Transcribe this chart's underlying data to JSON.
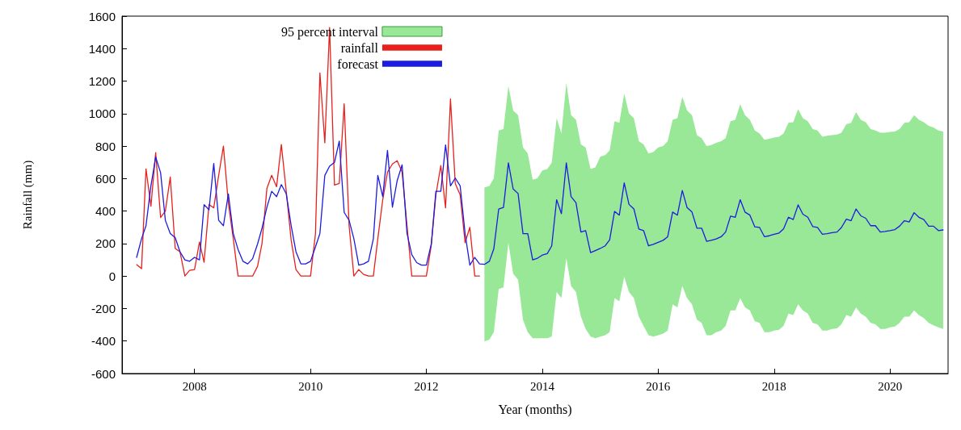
{
  "chart_data": {
    "type": "line",
    "xlabel": "Year (months)",
    "ylabel": "Rainfall (mm)",
    "xlim": [
      "2006-10",
      "2021-01"
    ],
    "xticks": [
      "2008",
      "2010",
      "2012",
      "2014",
      "2016",
      "2018",
      "2020"
    ],
    "ylim": [
      -600,
      1600
    ],
    "yticks": [
      -600,
      -400,
      -200,
      0,
      200,
      400,
      600,
      800,
      1000,
      1200,
      1400,
      1600
    ],
    "grid": false,
    "legend": "top left",
    "marker": "none",
    "line_style": "solid",
    "series": [
      {
        "name": "95 percent interval",
        "type": "area",
        "color": "#98e898",
        "x": [
          "2013-01",
          "2013-02",
          "2013-03",
          "2013-04",
          "2013-05",
          "2013-06",
          "2013-07",
          "2013-08",
          "2013-09",
          "2013-10",
          "2013-11",
          "2013-12",
          "2014-01",
          "2014-02",
          "2014-03",
          "2014-04",
          "2014-05",
          "2014-06",
          "2014-07",
          "2014-08",
          "2014-09",
          "2014-10",
          "2014-11",
          "2014-12",
          "2015-01",
          "2015-02",
          "2015-03",
          "2015-04",
          "2015-05",
          "2015-06",
          "2015-07",
          "2015-08",
          "2015-09",
          "2015-10",
          "2015-11",
          "2015-12",
          "2016-01",
          "2016-02",
          "2016-03",
          "2016-04",
          "2016-05",
          "2016-06",
          "2016-07",
          "2016-08",
          "2016-09",
          "2016-10",
          "2016-11",
          "2016-12",
          "2017-01",
          "2017-02",
          "2017-03",
          "2017-04",
          "2017-05",
          "2017-06",
          "2017-07",
          "2017-08",
          "2017-09",
          "2017-10",
          "2017-11",
          "2017-12",
          "2018-01",
          "2018-02",
          "2018-03",
          "2018-04",
          "2018-05",
          "2018-06",
          "2018-07",
          "2018-08",
          "2018-09",
          "2018-10",
          "2018-11",
          "2018-12",
          "2019-01",
          "2019-02",
          "2019-03",
          "2019-04",
          "2019-05",
          "2019-06",
          "2019-07",
          "2019-08",
          "2019-09",
          "2019-10",
          "2019-11",
          "2019-12",
          "2020-01",
          "2020-02",
          "2020-03",
          "2020-04",
          "2020-05",
          "2020-06",
          "2020-07",
          "2020-08",
          "2020-09",
          "2020-10",
          "2020-11",
          "2020-12"
        ],
        "values": [
          null,
          null,
          null,
          null,
          null,
          null,
          null,
          null,
          null,
          null,
          null,
          null,
          null,
          null,
          null,
          null,
          null,
          null,
          null,
          null,
          null,
          null,
          null,
          null,
          null,
          null,
          null,
          null,
          null,
          null,
          null,
          null,
          null,
          null,
          null,
          null,
          null,
          null,
          null,
          null,
          null,
          null,
          null,
          null,
          null,
          null,
          null,
          null,
          null,
          null,
          null,
          null,
          null,
          null,
          null,
          null,
          null,
          null,
          null,
          null,
          null,
          null,
          null,
          null,
          null,
          null,
          null,
          null,
          null,
          null,
          null,
          null,
          null,
          null,
          null,
          null,
          null,
          null,
          null,
          null,
          null,
          null,
          null,
          null,
          null,
          null,
          null,
          null,
          null,
          null,
          null,
          null,
          null,
          null,
          null,
          null
        ],
        "lower": [
          -402,
          -392,
          -345,
          -80,
          -70,
          205,
          15,
          -23,
          -269,
          -345,
          -383,
          -383,
          -383,
          -383,
          -373,
          -99,
          -136,
          110,
          -61,
          -99,
          -250,
          -326,
          -373,
          -383,
          -373,
          -364,
          -345,
          -136,
          -155,
          -4,
          -99,
          -136,
          -250,
          -307,
          -364,
          -373,
          -364,
          -354,
          -335,
          -174,
          -193,
          -61,
          -136,
          -174,
          -269,
          -288,
          -364,
          -364,
          -345,
          -335,
          -307,
          -212,
          -212,
          -136,
          -193,
          -212,
          -278,
          -288,
          -345,
          -345,
          -335,
          -330,
          -307,
          -231,
          -240,
          -174,
          -212,
          -231,
          -288,
          -297,
          -335,
          -335,
          -326,
          -322,
          -297,
          -240,
          -250,
          -193,
          -231,
          -250,
          -288,
          -297,
          -326,
          -326,
          -316,
          -311,
          -288,
          -250,
          -250,
          -212,
          -240,
          -259,
          -288,
          -303,
          -316,
          -326
        ],
        "upper": [
          545,
          555,
          602,
          896,
          905,
          1170,
          1019,
          990,
          792,
          754,
          593,
          602,
          650,
          659,
          697,
          972,
          877,
          1189,
          990,
          962,
          811,
          792,
          659,
          669,
          735,
          744,
          773,
          953,
          943,
          1123,
          1000,
          972,
          830,
          811,
          754,
          763,
          792,
          801,
          830,
          962,
          972,
          1104,
          1019,
          990,
          868,
          849,
          801,
          807,
          820,
          830,
          849,
          953,
          962,
          1057,
          990,
          962,
          896,
          877,
          839,
          845,
          852,
          858,
          877,
          943,
          947,
          1028,
          972,
          953,
          905,
          896,
          858,
          864,
          868,
          871,
          883,
          934,
          943,
          1009,
          962,
          947,
          905,
          896,
          883,
          883,
          887,
          890,
          905,
          943,
          947,
          990,
          962,
          947,
          924,
          915,
          896,
          890
        ]
      },
      {
        "name": "rainfall",
        "color": "#e8201c",
        "x": [
          "2007-01",
          "2007-02",
          "2007-03",
          "2007-04",
          "2007-05",
          "2007-06",
          "2007-07",
          "2007-08",
          "2007-09",
          "2007-10",
          "2007-11",
          "2007-12",
          "2008-01",
          "2008-02",
          "2008-03",
          "2008-04",
          "2008-05",
          "2008-06",
          "2008-07",
          "2008-08",
          "2008-09",
          "2008-10",
          "2008-11",
          "2008-12",
          "2009-01",
          "2009-02",
          "2009-03",
          "2009-04",
          "2009-05",
          "2009-06",
          "2009-07",
          "2009-08",
          "2009-09",
          "2009-10",
          "2009-11",
          "2009-12",
          "2010-01",
          "2010-02",
          "2010-03",
          "2010-04",
          "2010-05",
          "2010-06",
          "2010-07",
          "2010-08",
          "2010-09",
          "2010-10",
          "2010-11",
          "2010-12",
          "2011-01",
          "2011-02",
          "2011-03",
          "2011-04",
          "2011-05",
          "2011-06",
          "2011-07",
          "2011-08",
          "2011-09",
          "2011-10",
          "2011-11",
          "2011-12",
          "2012-01",
          "2012-02",
          "2012-03",
          "2012-04",
          "2012-05",
          "2012-06",
          "2012-07",
          "2012-08",
          "2012-09",
          "2012-10",
          "2012-11",
          "2012-12"
        ],
        "values": [
          70,
          45,
          660,
          430,
          760,
          360,
          400,
          610,
          170,
          150,
          0,
          35,
          40,
          210,
          85,
          440,
          420,
          620,
          800,
          450,
          230,
          0,
          0,
          0,
          0,
          60,
          200,
          540,
          620,
          550,
          810,
          520,
          220,
          40,
          0,
          0,
          0,
          260,
          1250,
          820,
          1530,
          560,
          570,
          1060,
          310,
          0,
          40,
          10,
          0,
          0,
          230,
          470,
          640,
          690,
          710,
          640,
          310,
          0,
          0,
          0,
          0,
          190,
          500,
          680,
          420,
          1090,
          570,
          500,
          205,
          300,
          0,
          0
        ]
      },
      {
        "name": "forecast",
        "color": "#1c1ce0",
        "x": [
          "2007-01",
          "2007-02",
          "2007-03",
          "2007-04",
          "2007-05",
          "2007-06",
          "2007-07",
          "2007-08",
          "2007-09",
          "2007-10",
          "2007-11",
          "2007-12",
          "2008-01",
          "2008-02",
          "2008-03",
          "2008-04",
          "2008-05",
          "2008-06",
          "2008-07",
          "2008-08",
          "2008-09",
          "2008-10",
          "2008-11",
          "2008-12",
          "2009-01",
          "2009-02",
          "2009-03",
          "2009-04",
          "2009-05",
          "2009-06",
          "2009-07",
          "2009-08",
          "2009-09",
          "2009-10",
          "2009-11",
          "2009-12",
          "2010-01",
          "2010-02",
          "2010-03",
          "2010-04",
          "2010-05",
          "2010-06",
          "2010-07",
          "2010-08",
          "2010-09",
          "2010-10",
          "2010-11",
          "2010-12",
          "2011-01",
          "2011-02",
          "2011-03",
          "2011-04",
          "2011-05",
          "2011-06",
          "2011-07",
          "2011-08",
          "2011-09",
          "2011-10",
          "2011-11",
          "2011-12",
          "2012-01",
          "2012-02",
          "2012-03",
          "2012-04",
          "2012-05",
          "2012-06",
          "2012-07",
          "2012-08",
          "2012-09",
          "2012-10",
          "2012-11",
          "2012-12",
          "2013-01",
          "2013-02",
          "2013-03",
          "2013-04",
          "2013-05",
          "2013-06",
          "2013-07",
          "2013-08",
          "2013-09",
          "2013-10",
          "2013-11",
          "2013-12",
          "2014-01",
          "2014-02",
          "2014-03",
          "2014-04",
          "2014-05",
          "2014-06",
          "2014-07",
          "2014-08",
          "2014-09",
          "2014-10",
          "2014-11",
          "2014-12",
          "2015-01",
          "2015-02",
          "2015-03",
          "2015-04",
          "2015-05",
          "2015-06",
          "2015-07",
          "2015-08",
          "2015-09",
          "2015-10",
          "2015-11",
          "2015-12",
          "2016-01",
          "2016-02",
          "2016-03",
          "2016-04",
          "2016-05",
          "2016-06",
          "2016-07",
          "2016-08",
          "2016-09",
          "2016-10",
          "2016-11",
          "2016-12",
          "2017-01",
          "2017-02",
          "2017-03",
          "2017-04",
          "2017-05",
          "2017-06",
          "2017-07",
          "2017-08",
          "2017-09",
          "2017-10",
          "2017-11",
          "2017-12",
          "2018-01",
          "2018-02",
          "2018-03",
          "2018-04",
          "2018-05",
          "2018-06",
          "2018-07",
          "2018-08",
          "2018-09",
          "2018-10",
          "2018-11",
          "2018-12",
          "2019-01",
          "2019-02",
          "2019-03",
          "2019-04",
          "2019-05",
          "2019-06",
          "2019-07",
          "2019-08",
          "2019-09",
          "2019-10",
          "2019-11",
          "2019-12",
          "2020-01",
          "2020-02",
          "2020-03",
          "2020-04",
          "2020-05",
          "2020-06",
          "2020-07",
          "2020-08",
          "2020-09",
          "2020-10",
          "2020-11",
          "2020-12"
        ],
        "values": [
          115,
          230,
          310,
          555,
          733,
          636,
          343,
          262,
          237,
          150,
          100,
          91,
          115,
          100,
          440,
          408,
          693,
          343,
          310,
          506,
          262,
          164,
          91,
          75,
          107,
          197,
          294,
          424,
          522,
          489,
          563,
          506,
          310,
          150,
          75,
          75,
          91,
          180,
          262,
          620,
          676,
          700,
          831,
          392,
          343,
          230,
          67,
          75,
          91,
          230,
          620,
          489,
          774,
          424,
          587,
          685,
          262,
          132,
          83,
          67,
          67,
          197,
          522,
          522,
          807,
          555,
          603,
          555,
          262,
          67,
          115,
          75,
          72,
          91,
          167,
          413,
          422,
          697,
          536,
          508,
          261,
          261,
          100,
          110,
          129,
          138,
          186,
          470,
          384,
          697,
          489,
          451,
          271,
          280,
          144,
          157,
          170,
          186,
          223,
          398,
          375,
          574,
          441,
          413,
          290,
          280,
          186,
          195,
          208,
          220,
          242,
          394,
          375,
          527,
          422,
          394,
          295,
          295,
          214,
          220,
          229,
          242,
          271,
          369,
          362,
          470,
          394,
          375,
          303,
          299,
          242,
          248,
          257,
          265,
          290,
          362,
          348,
          438,
          381,
          362,
          305,
          299,
          257,
          261,
          267,
          271,
          299,
          350,
          341,
          413,
          371,
          356,
          310,
          310,
          271,
          275,
          280,
          286,
          307,
          341,
          333,
          390,
          362,
          348,
          307,
          307,
          280,
          284
        ]
      }
    ]
  }
}
